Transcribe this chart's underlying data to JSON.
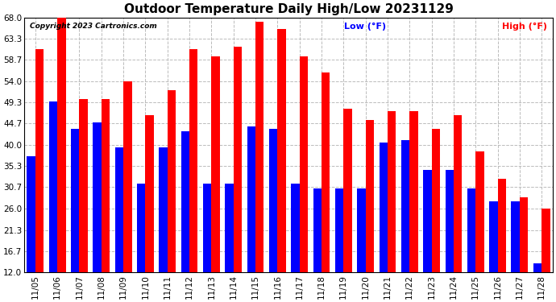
{
  "title": "Outdoor Temperature Daily High/Low 20231129",
  "copyright": "Copyright 2023 Cartronics.com",
  "legend_low": "Low",
  "legend_high": "High",
  "legend_unit": "(°F)",
  "dates": [
    "11/05",
    "11/06",
    "11/07",
    "11/08",
    "11/09",
    "11/10",
    "11/11",
    "11/12",
    "11/13",
    "11/14",
    "11/15",
    "11/16",
    "11/17",
    "11/18",
    "11/19",
    "11/20",
    "11/21",
    "11/22",
    "11/23",
    "11/24",
    "11/25",
    "11/26",
    "11/27",
    "11/28"
  ],
  "highs": [
    61.0,
    68.0,
    50.0,
    50.0,
    54.0,
    46.5,
    52.0,
    61.0,
    59.5,
    61.5,
    67.0,
    65.5,
    59.5,
    56.0,
    48.0,
    45.5,
    47.5,
    47.5,
    43.5,
    46.5,
    38.5,
    32.5,
    28.5,
    26.0
  ],
  "lows": [
    37.5,
    49.5,
    43.5,
    45.0,
    39.5,
    31.5,
    39.5,
    43.0,
    31.5,
    31.5,
    44.0,
    43.5,
    31.5,
    30.5,
    30.5,
    30.5,
    40.5,
    41.0,
    34.5,
    34.5,
    30.5,
    27.5,
    27.5,
    14.0
  ],
  "bar_width": 0.38,
  "high_color": "#ff0000",
  "low_color": "#0000ff",
  "background_color": "#ffffff",
  "plot_background": "#ffffff",
  "grid_color": "#bbbbbb",
  "title_fontsize": 11,
  "tick_fontsize": 7.5,
  "yticks": [
    12.0,
    16.7,
    21.3,
    26.0,
    30.7,
    35.3,
    40.0,
    44.7,
    49.3,
    54.0,
    58.7,
    63.3,
    68.0
  ],
  "ymin": 12.0,
  "ymax": 68.0,
  "legend_fontsize": 8
}
